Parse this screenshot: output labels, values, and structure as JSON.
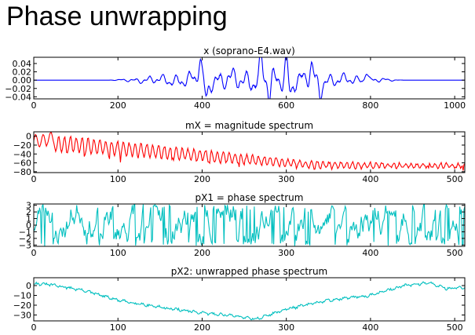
{
  "slide": {
    "title": "Phase unwrapping"
  },
  "chart_data": [
    {
      "type": "line",
      "title": "x (soprano-E4.wav)",
      "xlabel": "",
      "ylabel": "",
      "xlim": [
        0,
        1024
      ],
      "ylim": [
        -0.045,
        0.055
      ],
      "xticks": [
        0,
        200,
        400,
        600,
        800,
        1000
      ],
      "yticks": [
        -0.04,
        -0.02,
        0.0,
        0.02,
        0.04
      ],
      "ytick_labels": [
        "−0.04",
        "−0.02",
        "0.00",
        "0.02",
        "0.04"
      ],
      "grid": false,
      "color": "#0000ff",
      "series": [
        {
          "name": "x",
          "signal": "windowed soprano waveform: near zero 0–200 and 880–1024, oscillating around 0 between ~230 and ~860, peaks ≈ 0.05 near 395, 540, 600, troughs ≈ −0.04 near 410, 560"
        }
      ]
    },
    {
      "type": "line",
      "title": "mX = magnitude spectrum",
      "xlabel": "",
      "ylabel": "",
      "xlim": [
        0,
        512
      ],
      "ylim": [
        -82,
        10
      ],
      "xticks": [
        0,
        100,
        200,
        300,
        400,
        500
      ],
      "yticks": [
        -80,
        -60,
        -40,
        -20,
        0
      ],
      "ytick_labels": [
        "−80",
        "−60",
        "−40",
        "−20",
        "0"
      ],
      "grid": false,
      "color": "#ff0000",
      "series": [
        {
          "name": "mX",
          "signal": "decreasing trend from ≈ 0 dB at bin 0 to ≈ −65 dB at 512 with harmonic ripple; max ≈ 8 dB near bin 20, dips to ≈ −80 dB"
        }
      ]
    },
    {
      "type": "line",
      "title": "pX1 = phase spectrum",
      "xlabel": "",
      "ylabel": "",
      "xlim": [
        0,
        512
      ],
      "ylim": [
        -3.2,
        3.2
      ],
      "xticks": [
        0,
        100,
        200,
        300,
        400,
        500
      ],
      "yticks": [
        -3,
        -2,
        -1,
        0,
        1,
        2,
        3
      ],
      "ytick_labels": [
        "−3",
        "−2",
        "−1",
        "0",
        "1",
        "2",
        "3"
      ],
      "grid": false,
      "color": "#00bfbf",
      "series": [
        {
          "name": "pX1",
          "signal": "wrapped phase jumping between −π and π across all bins 0–512"
        }
      ]
    },
    {
      "type": "line",
      "title": "pX2: unwrapped phase spectrum",
      "xlabel": "",
      "ylabel": "",
      "xlim": [
        0,
        512
      ],
      "ylim": [
        -36,
        8
      ],
      "xticks": [
        0,
        100,
        200,
        300,
        400,
        500
      ],
      "yticks": [
        -30,
        -20,
        -10,
        0
      ],
      "ytick_labels": [
        "−30",
        "−20",
        "−10",
        "0"
      ],
      "grid": false,
      "color": "#00bfbf",
      "series": [
        {
          "name": "pX2",
          "anchors_x": [
            0,
            20,
            60,
            100,
            150,
            200,
            230,
            265,
            300,
            350,
            400,
            440,
            470,
            490,
            512
          ],
          "anchors_y": [
            2,
            1,
            -5,
            -15,
            -22,
            -28,
            -30,
            -34,
            -24,
            -15,
            -10,
            0,
            3,
            -3,
            -2
          ]
        }
      ]
    }
  ]
}
